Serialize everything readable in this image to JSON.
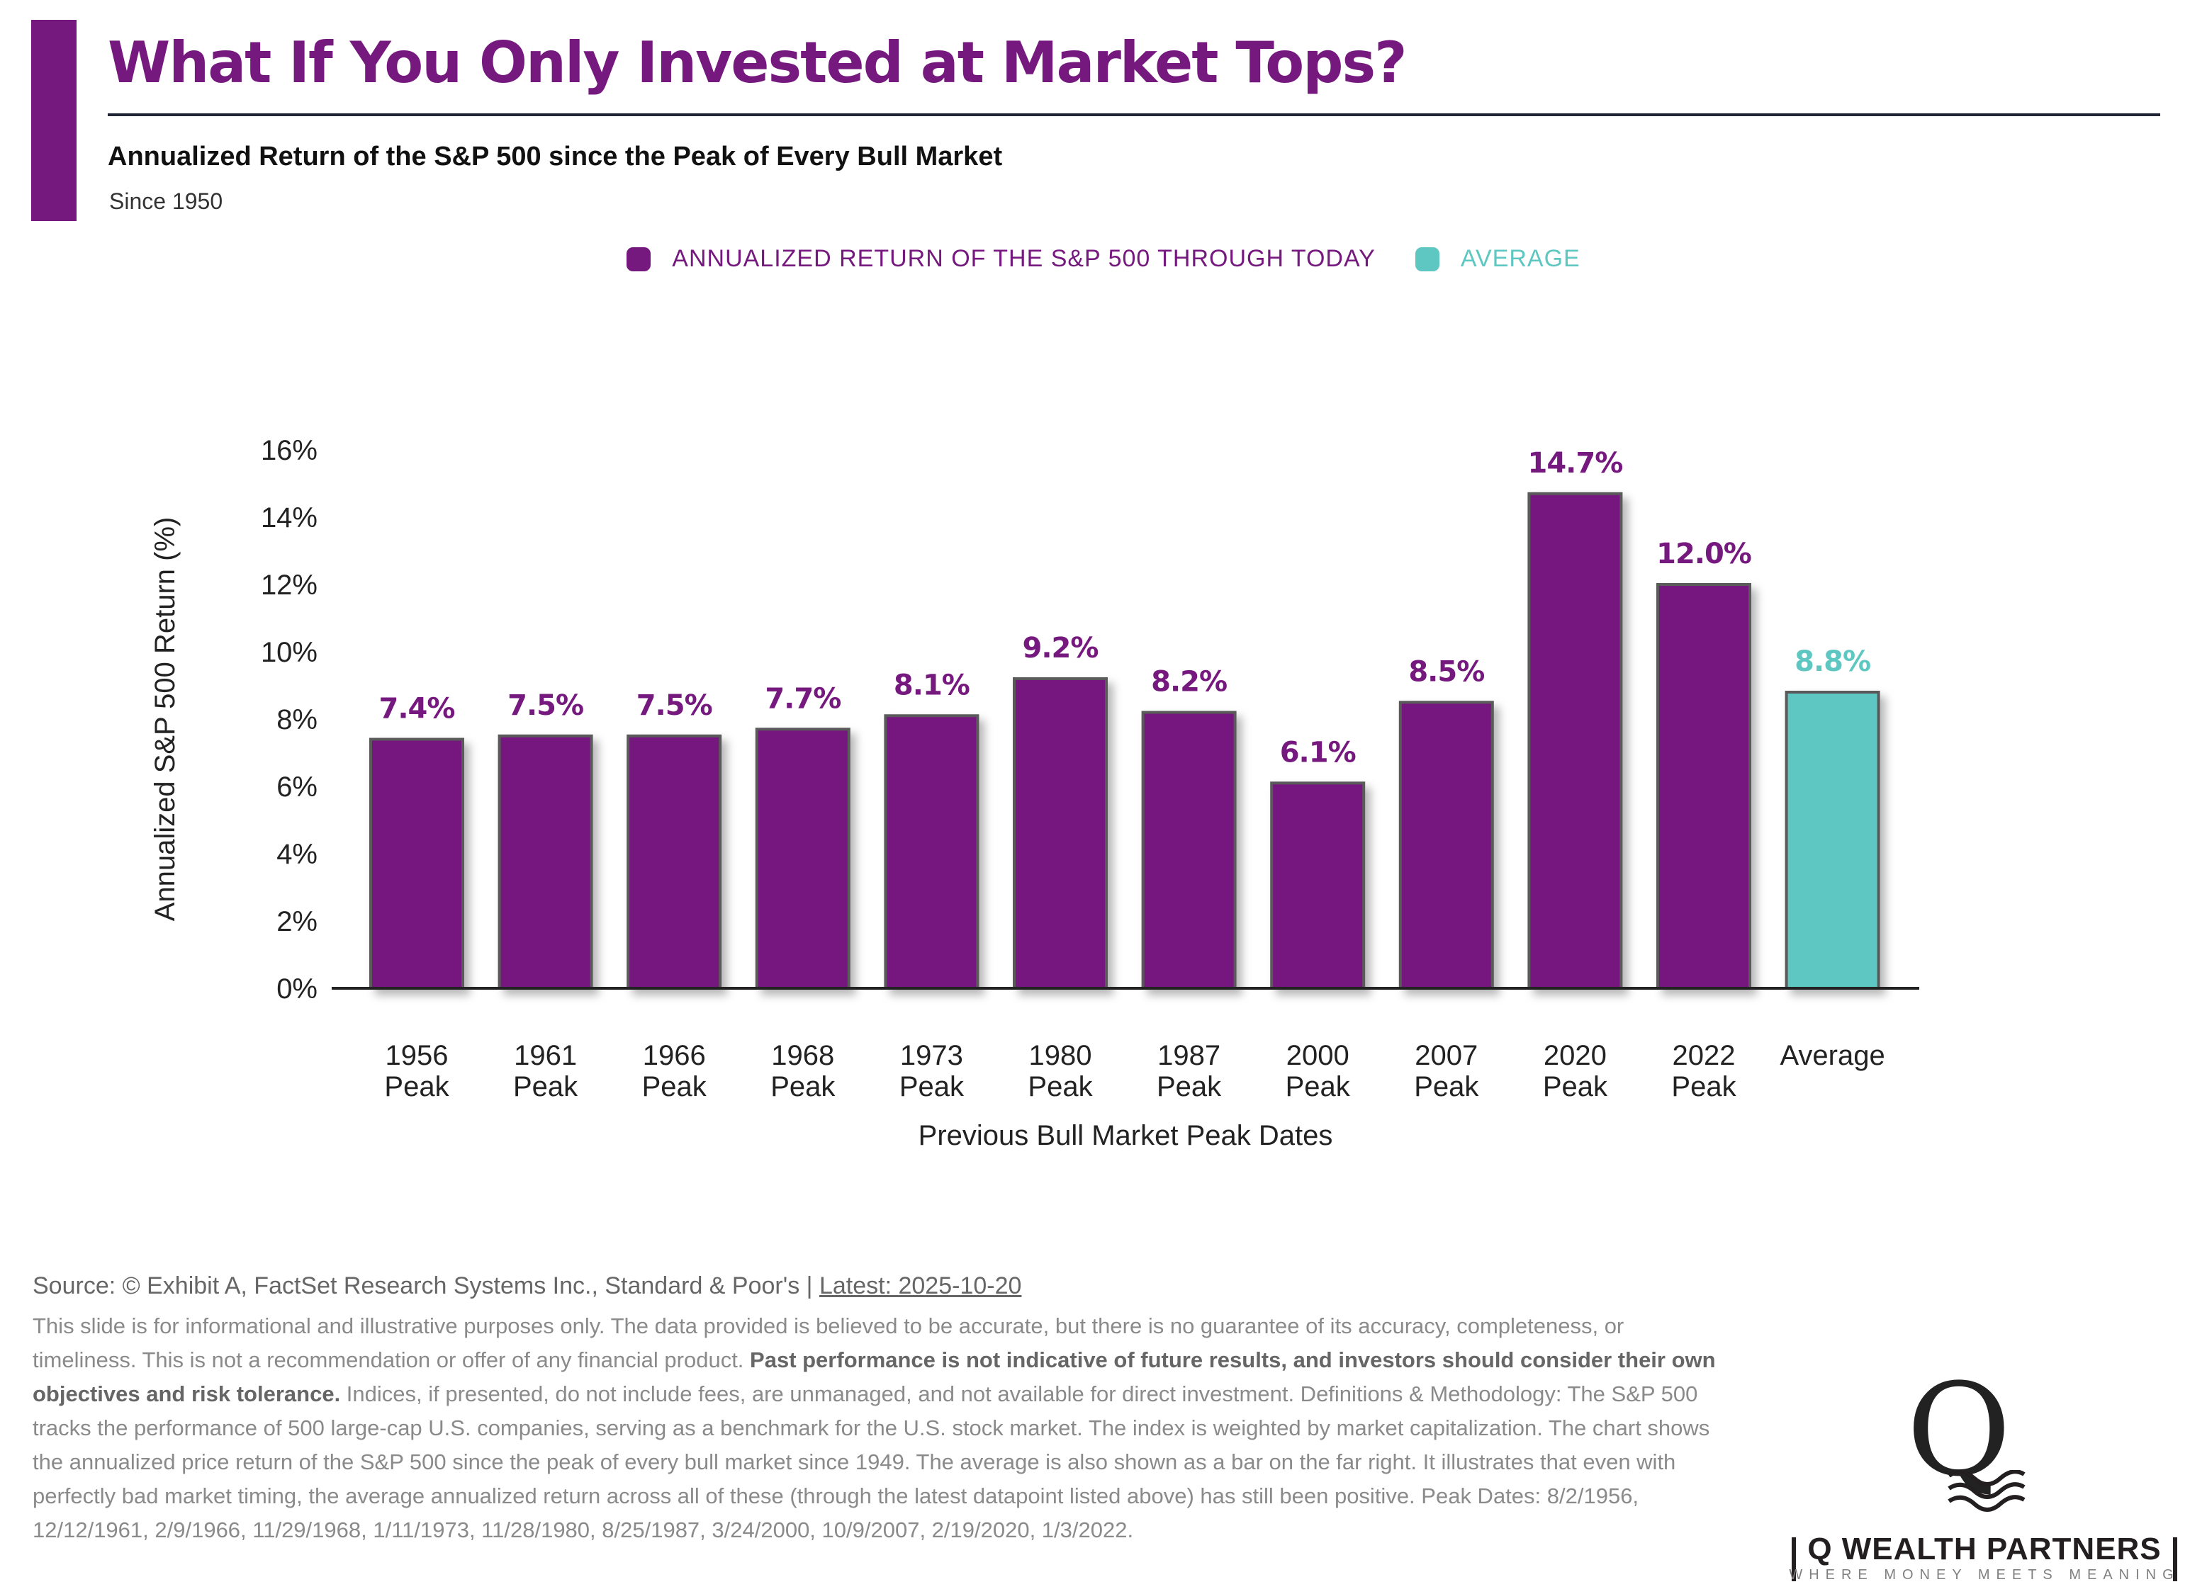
{
  "header": {
    "title": "What If You Only Invested at Market Tops?",
    "subtitle": "Annualized Return of the S&P 500 since the Peak of Every Bull Market",
    "since": "Since 1950"
  },
  "colors": {
    "primary": "#76197f",
    "average": "#5fc7c2",
    "axis": "#222222",
    "bar_border": "#5a5a5a"
  },
  "legend": [
    {
      "label": "ANNUALIZED RETURN OF THE S&P 500 THROUGH TODAY",
      "color": "#76197f"
    },
    {
      "label": "AVERAGE",
      "color": "#5fc7c2"
    }
  ],
  "chart_data": {
    "type": "bar",
    "title": "Annualized Return of the S&P 500 since the Peak of Every Bull Market",
    "xlabel": "Previous Bull Market Peak Dates",
    "ylabel": "Annualized S&P 500 Return (%)",
    "ylim": [
      0,
      16
    ],
    "yticks": [
      0,
      2,
      4,
      6,
      8,
      10,
      12,
      14,
      16
    ],
    "ytick_labels": [
      "0%",
      "2%",
      "4%",
      "6%",
      "8%",
      "10%",
      "12%",
      "14%",
      "16%"
    ],
    "grid": false,
    "legend_position": "top-center",
    "categories": [
      [
        "1956",
        "Peak"
      ],
      [
        "1961",
        "Peak"
      ],
      [
        "1966",
        "Peak"
      ],
      [
        "1968",
        "Peak"
      ],
      [
        "1973",
        "Peak"
      ],
      [
        "1980",
        "Peak"
      ],
      [
        "1987",
        "Peak"
      ],
      [
        "2000",
        "Peak"
      ],
      [
        "2007",
        "Peak"
      ],
      [
        "2020",
        "Peak"
      ],
      [
        "2022",
        "Peak"
      ],
      [
        "Average"
      ]
    ],
    "series": [
      {
        "name": "ANNUALIZED RETURN OF THE S&P 500 THROUGH TODAY",
        "values": [
          7.4,
          7.5,
          7.5,
          7.7,
          8.1,
          9.2,
          8.2,
          6.1,
          8.5,
          14.7,
          12.0,
          null
        ],
        "labels": [
          "7.4%",
          "7.5%",
          "7.5%",
          "7.7%",
          "8.1%",
          "9.2%",
          "8.2%",
          "6.1%",
          "8.5%",
          "14.7%",
          "12.0%",
          null
        ]
      },
      {
        "name": "AVERAGE",
        "values": [
          null,
          null,
          null,
          null,
          null,
          null,
          null,
          null,
          null,
          null,
          null,
          8.8
        ],
        "labels": [
          null,
          null,
          null,
          null,
          null,
          null,
          null,
          null,
          null,
          null,
          null,
          "8.8%"
        ]
      }
    ]
  },
  "footer": {
    "source": "Source: © Exhibit A, FactSet Research Systems Inc., Standard & Poor's | ",
    "latest": "Latest: 2025-10-20",
    "disclaimer_1": "This slide is for informational and illustrative purposes only. The data provided is believed to be accurate, but there is no guarantee of its accuracy, completeness, or timeliness. This is not a recommendation or offer of any financial product. ",
    "disclaimer_bold": "Past performance is not indicative of future results, and investors should consider their own objectives and risk tolerance.",
    "disclaimer_2": " Indices, if presented, do not include fees, are unmanaged, and not available for direct investment. Definitions & Methodology: The S&P 500 tracks the performance of 500 large-cap U.S. companies, serving as a benchmark for the U.S. stock market. The index is weighted by market capitalization. The chart shows the annualized price return of the S&P 500 since the peak of every bull market since 1949. The average is also shown as a bar on the far right. It illustrates that even with perfectly bad market timing, the average annualized return across all of these (through the latest datapoint listed above) has still been positive. Peak Dates: 8/2/1956, 12/12/1961, 2/9/1966, 11/29/1968, 1/11/1973, 11/28/1980, 8/25/1987, 3/24/2000, 10/9/2007, 2/19/2020, 1/3/2022."
  },
  "logo": {
    "letter": "Q",
    "name": "Q WEALTH PARTNERS",
    "tagline": "WHERE MONEY MEETS MEANING"
  }
}
